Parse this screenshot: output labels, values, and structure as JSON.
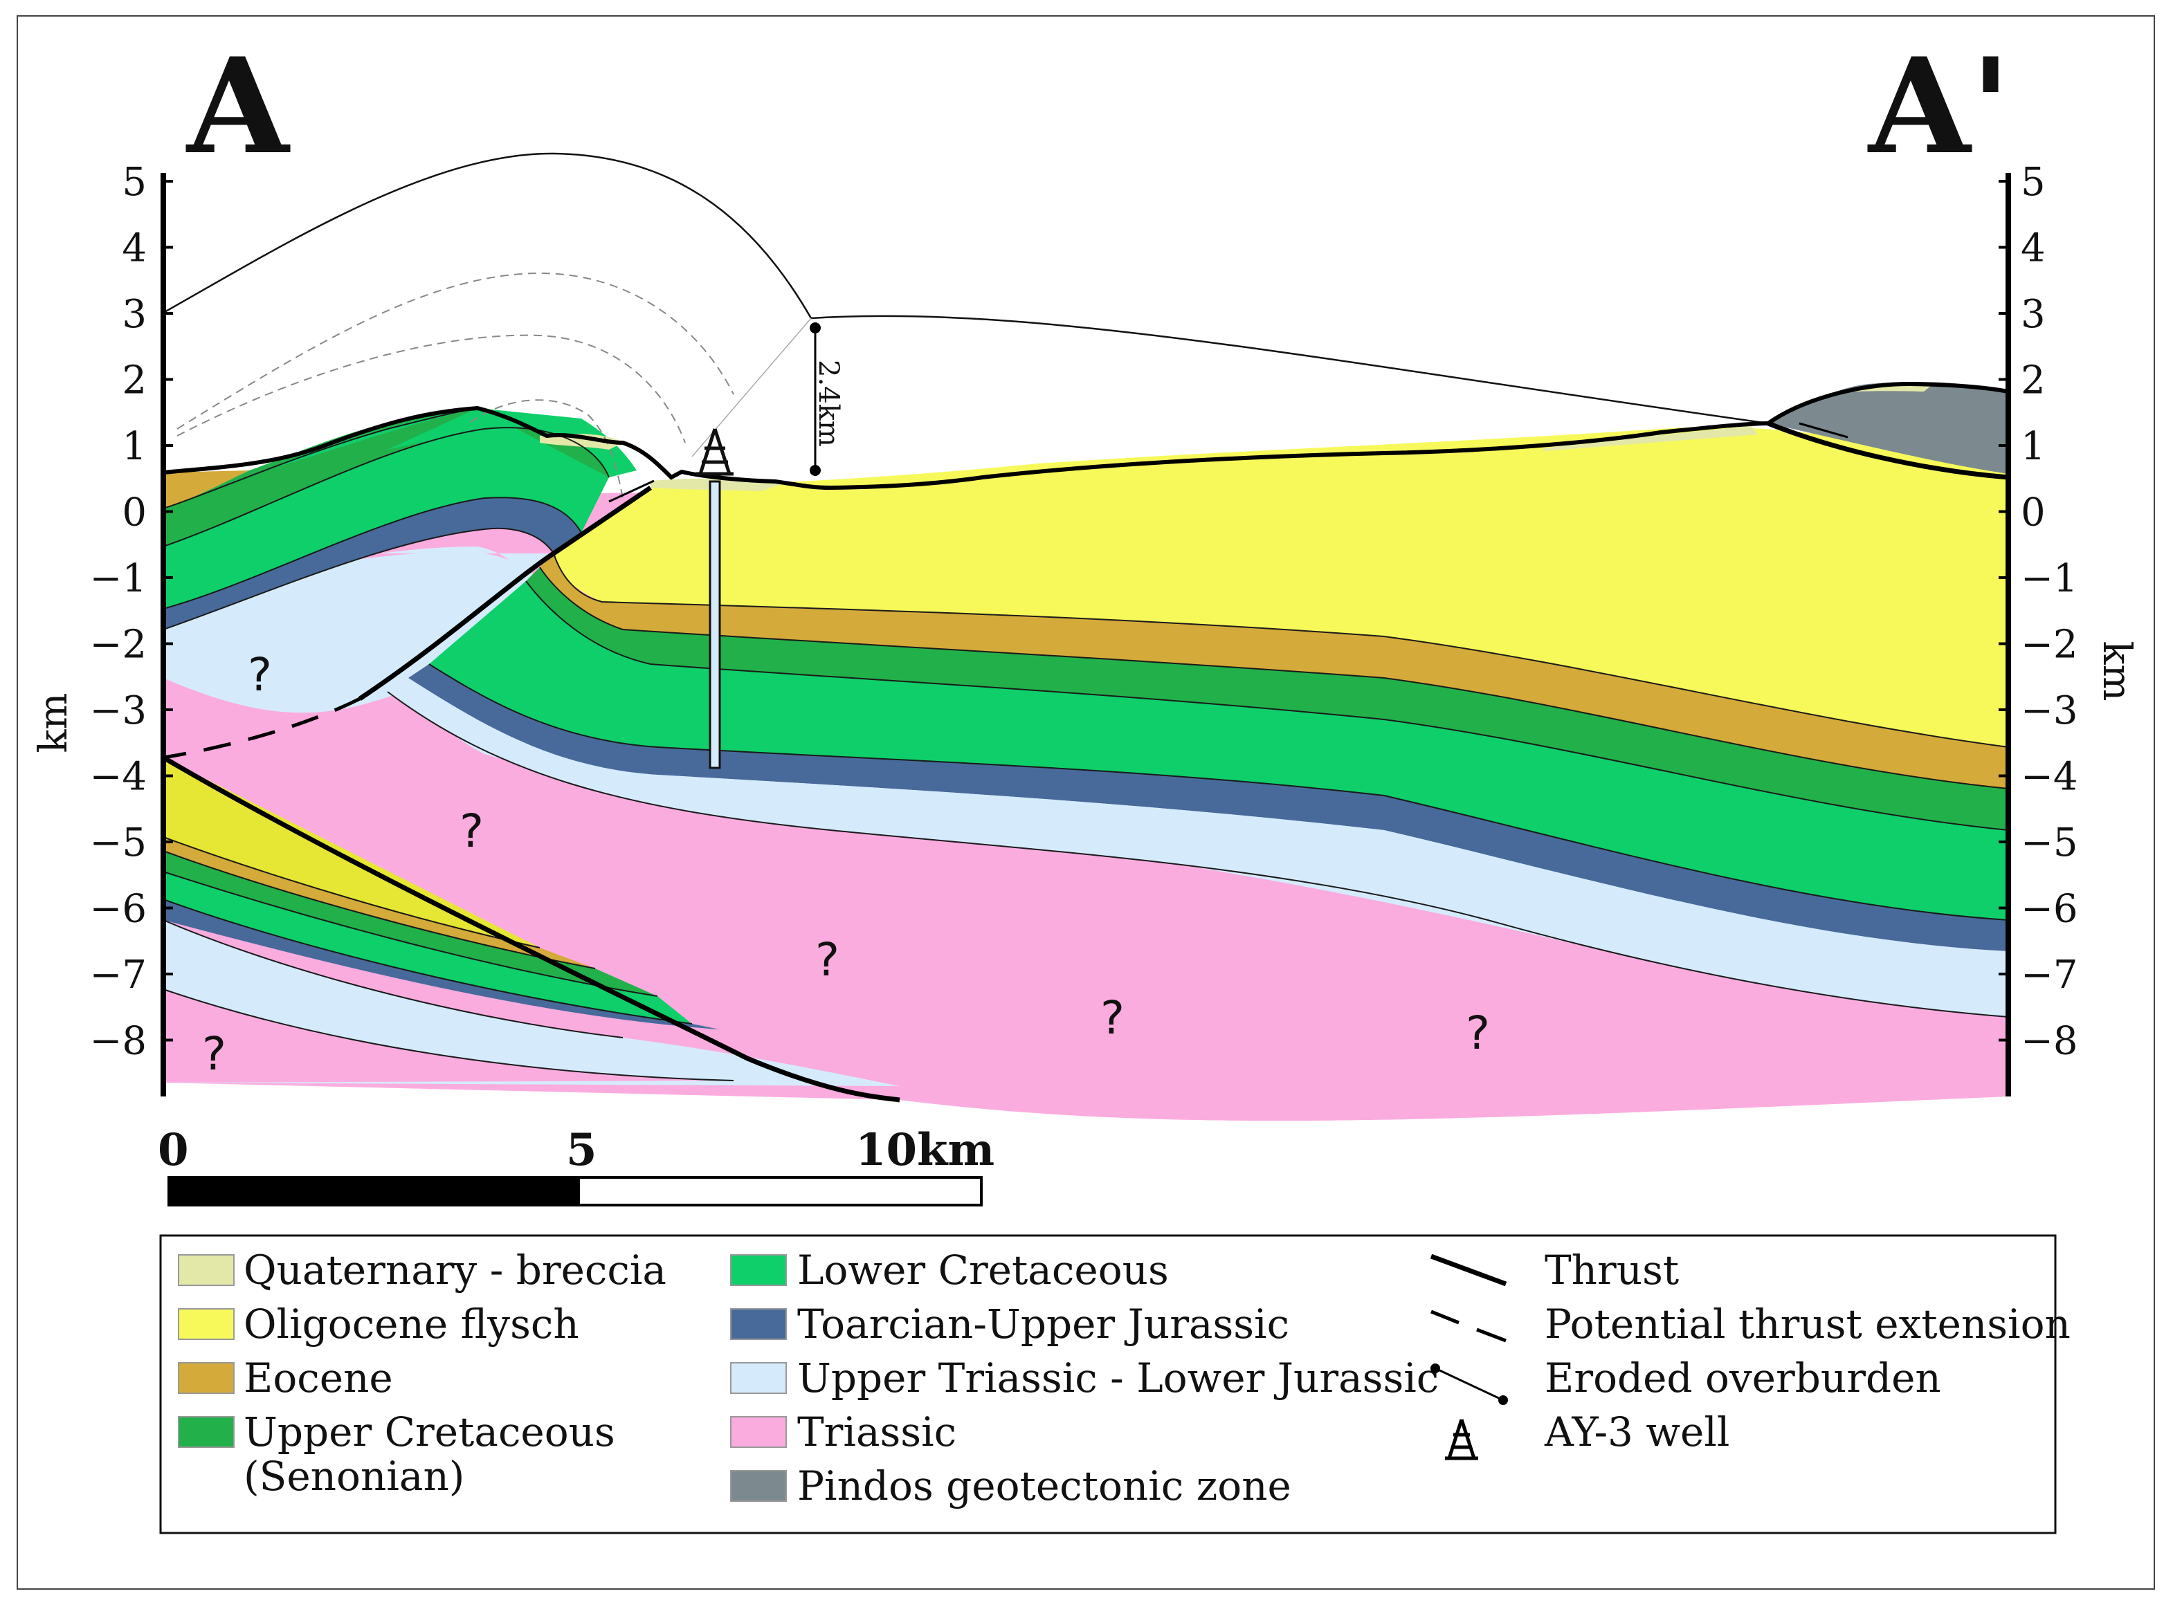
{
  "section": {
    "start_label": "A",
    "end_label": "A'",
    "axis_label_left": "km",
    "axis_label_right": "km",
    "y_ticks": [
      "5",
      "4",
      "3",
      "2",
      "1",
      "0",
      "−1",
      "−2",
      "−3",
      "−4",
      "−5",
      "−6",
      "−7",
      "−8"
    ],
    "unknown_mark": "?",
    "erosion_annotation": "2.4km"
  },
  "scale_bar": {
    "labels": [
      "0",
      "5",
      "10km"
    ]
  },
  "legend": {
    "units": [
      {
        "label": "Quaternary - breccia",
        "color": "#e3e8a8"
      },
      {
        "label": "Oligocene flysch",
        "color": "#f7f95a"
      },
      {
        "label": "Eocene",
        "color": "#d4aa3a"
      },
      {
        "label": "Upper Cretaceous",
        "label2": "(Senonian)",
        "color": "#22b04a"
      },
      {
        "label": "Lower Cretaceous",
        "color": "#0fcf6a"
      },
      {
        "label": "Toarcian-Upper Jurassic",
        "color": "#486a9a"
      },
      {
        "label": "Upper Triassic - Lower Jurassic",
        "color": "#d5ebfb"
      },
      {
        "label": "Triassic",
        "color": "#fbacdf"
      },
      {
        "label": "Pindos geotectonic zone",
        "color": "#7c8a8f"
      }
    ],
    "symbols": [
      {
        "label": "Thrust"
      },
      {
        "label": "Potential thrust extension"
      },
      {
        "label": "Eroded overburden"
      },
      {
        "label": "AY-3 well"
      }
    ]
  }
}
